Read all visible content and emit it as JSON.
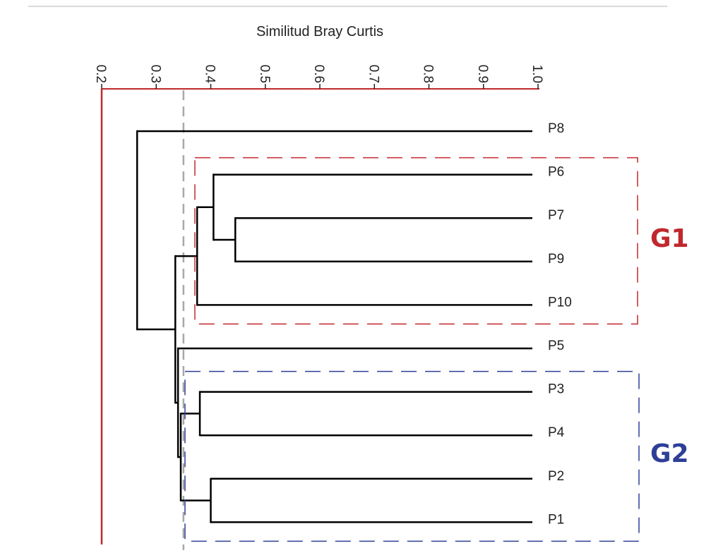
{
  "chart_data": {
    "type": "dendrogram",
    "title": "Similitud Bray Curtis",
    "axis": {
      "min": 0.2,
      "max": 1.0,
      "ticks": [
        "0.2",
        "0.3",
        "0.4",
        "0.5",
        "0.6",
        "0.7",
        "0.8",
        "0.9",
        "1.0"
      ],
      "cut_level": 0.35
    },
    "leaves": [
      "P8",
      "P6",
      "P7",
      "P9",
      "P10",
      "P5",
      "P3",
      "P4",
      "P2",
      "P1"
    ],
    "merges": [
      {
        "children": [
          "P7",
          "P9"
        ],
        "similarity": 0.445
      },
      {
        "children": [
          "P6",
          [
            "P7",
            "P9"
          ]
        ],
        "similarity": 0.405
      },
      {
        "children": [
          [
            "P6",
            "P7",
            "P9"
          ],
          "P10"
        ],
        "similarity": 0.375
      },
      {
        "children": [
          "P3",
          "P4"
        ],
        "similarity": 0.38
      },
      {
        "children": [
          "P2",
          "P1"
        ],
        "similarity": 0.4
      },
      {
        "children": [
          [
            "P3",
            "P4"
          ],
          [
            "P2",
            "P1"
          ]
        ],
        "similarity": 0.345
      },
      {
        "children": [
          "P5",
          [
            "P3",
            "P4",
            "P2",
            "P1"
          ]
        ],
        "similarity": 0.34
      },
      {
        "children": [
          [
            "P6",
            "P7",
            "P9",
            "P10"
          ],
          [
            "P5",
            "P3",
            "P4",
            "P2",
            "P1"
          ]
        ],
        "similarity": 0.335
      },
      {
        "children": [
          "P8",
          [
            "P6",
            "P7",
            "P9",
            "P10",
            "P5",
            "P3",
            "P4",
            "P2",
            "P1"
          ]
        ],
        "similarity": 0.265
      }
    ],
    "groups": [
      {
        "label": "G1",
        "members": [
          "P6",
          "P7",
          "P9",
          "P10"
        ],
        "color": "#c0282d"
      },
      {
        "label": "G2",
        "members": [
          "P3",
          "P4",
          "P2",
          "P1"
        ],
        "color": "#2e3f98"
      }
    ],
    "colors": {
      "axis": "#c0282d",
      "branches": "#000000",
      "cut_line": "#a8a8a8"
    }
  }
}
